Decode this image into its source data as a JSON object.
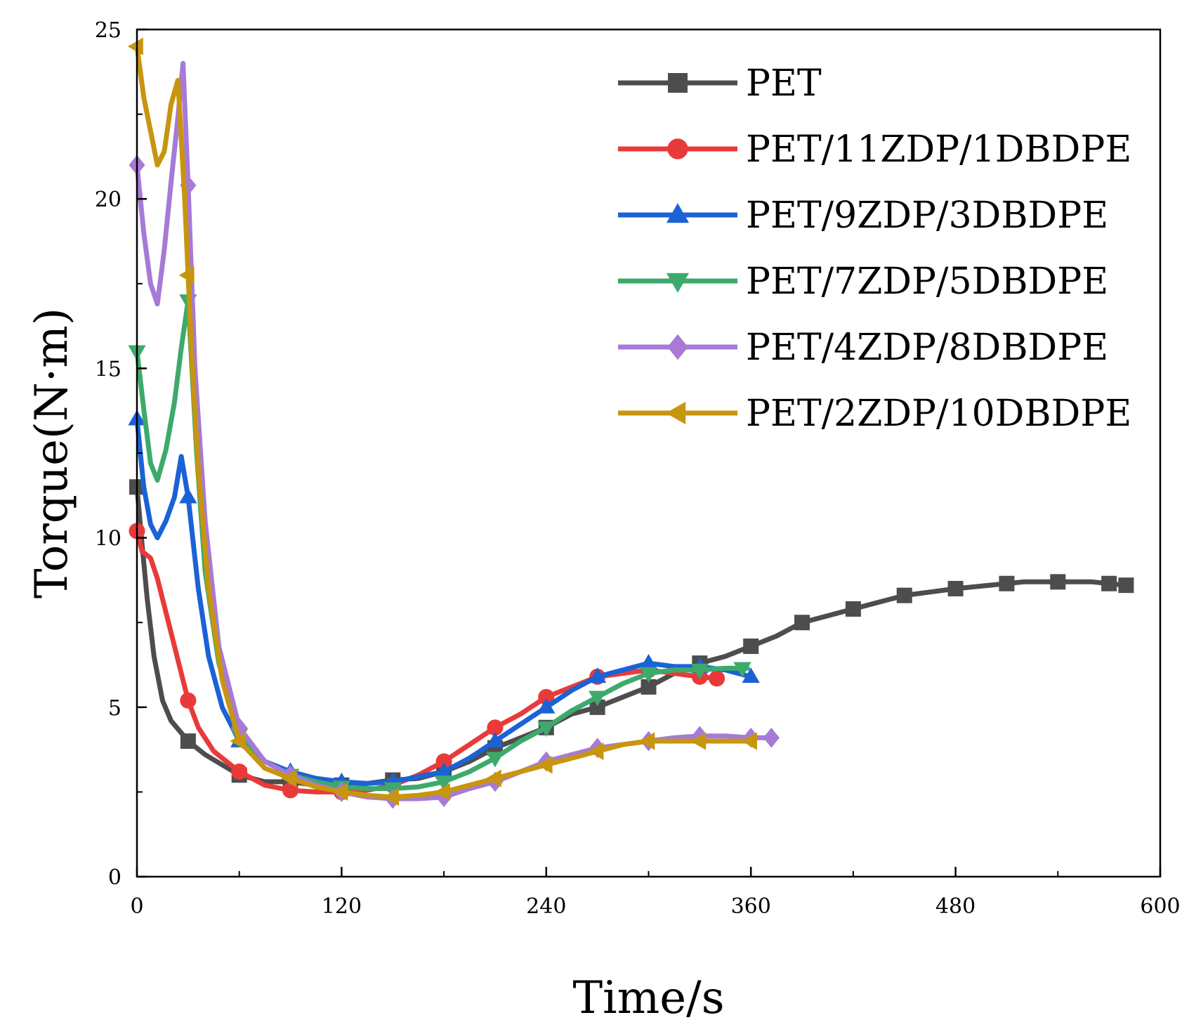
{
  "chart_data": {
    "type": "line",
    "title": "",
    "xlabel": "Time/s",
    "ylabel": "Torque(N·m)",
    "xlim": [
      0,
      600
    ],
    "ylim": [
      0,
      25
    ],
    "xticks": [
      0,
      120,
      240,
      360,
      480,
      600
    ],
    "yticks": [
      0,
      5,
      10,
      15,
      20,
      25
    ],
    "grid": false,
    "legend_position": "top-right",
    "series": [
      {
        "name": "PET",
        "color": "#4d4d4d",
        "marker": "square",
        "points": [
          [
            0,
            11.5
          ],
          [
            3,
            9.8
          ],
          [
            6,
            8.2
          ],
          [
            10,
            6.5
          ],
          [
            15,
            5.2
          ],
          [
            20,
            4.6
          ],
          [
            30,
            4.0
          ],
          [
            40,
            3.6
          ],
          [
            50,
            3.3
          ],
          [
            60,
            3.0
          ],
          [
            75,
            2.8
          ],
          [
            90,
            2.8
          ],
          [
            105,
            2.7
          ],
          [
            120,
            2.7
          ],
          [
            135,
            2.75
          ],
          [
            150,
            2.85
          ],
          [
            165,
            2.9
          ],
          [
            180,
            3.1
          ],
          [
            195,
            3.4
          ],
          [
            210,
            3.8
          ],
          [
            225,
            4.1
          ],
          [
            240,
            4.4
          ],
          [
            255,
            4.8
          ],
          [
            270,
            5.0
          ],
          [
            285,
            5.3
          ],
          [
            300,
            5.6
          ],
          [
            315,
            6.0
          ],
          [
            330,
            6.3
          ],
          [
            345,
            6.5
          ],
          [
            360,
            6.8
          ],
          [
            375,
            7.1
          ],
          [
            390,
            7.5
          ],
          [
            405,
            7.7
          ],
          [
            420,
            7.9
          ],
          [
            435,
            8.1
          ],
          [
            450,
            8.3
          ],
          [
            465,
            8.4
          ],
          [
            480,
            8.5
          ],
          [
            500,
            8.6
          ],
          [
            520,
            8.7
          ],
          [
            540,
            8.7
          ],
          [
            560,
            8.7
          ],
          [
            580,
            8.6
          ]
        ],
        "marker_x": [
          0,
          30,
          60,
          90,
          120,
          150,
          180,
          210,
          240,
          270,
          300,
          330,
          360,
          390,
          420,
          450,
          480,
          510,
          540,
          570,
          580
        ]
      },
      {
        "name": "PET/11ZDP/1DBDPE",
        "color": "#e93a3a",
        "marker": "circle",
        "points": [
          [
            0,
            10.2
          ],
          [
            3,
            9.6
          ],
          [
            8,
            9.4
          ],
          [
            12,
            8.8
          ],
          [
            18,
            7.6
          ],
          [
            24,
            6.4
          ],
          [
            30,
            5.2
          ],
          [
            36,
            4.4
          ],
          [
            45,
            3.7
          ],
          [
            60,
            3.1
          ],
          [
            75,
            2.7
          ],
          [
            90,
            2.55
          ],
          [
            105,
            2.5
          ],
          [
            120,
            2.5
          ],
          [
            135,
            2.55
          ],
          [
            150,
            2.7
          ],
          [
            165,
            3.0
          ],
          [
            180,
            3.4
          ],
          [
            195,
            3.9
          ],
          [
            210,
            4.4
          ],
          [
            225,
            4.8
          ],
          [
            240,
            5.3
          ],
          [
            255,
            5.6
          ],
          [
            270,
            5.9
          ],
          [
            285,
            6.0
          ],
          [
            300,
            6.1
          ],
          [
            315,
            6.0
          ],
          [
            330,
            5.9
          ],
          [
            340,
            5.85
          ]
        ],
        "marker_x": [
          0,
          30,
          60,
          90,
          120,
          150,
          180,
          210,
          240,
          270,
          300,
          330,
          340
        ]
      },
      {
        "name": "PET/9ZDP/3DBDPE",
        "color": "#1a62d6",
        "marker": "triangle-up",
        "points": [
          [
            0,
            13.5
          ],
          [
            4,
            11.5
          ],
          [
            8,
            10.4
          ],
          [
            12,
            10.0
          ],
          [
            17,
            10.5
          ],
          [
            22,
            11.2
          ],
          [
            26,
            12.4
          ],
          [
            30,
            11.2
          ],
          [
            36,
            8.5
          ],
          [
            42,
            6.5
          ],
          [
            50,
            5.0
          ],
          [
            60,
            4.0
          ],
          [
            75,
            3.4
          ],
          [
            90,
            3.1
          ],
          [
            105,
            2.9
          ],
          [
            120,
            2.8
          ],
          [
            135,
            2.75
          ],
          [
            150,
            2.8
          ],
          [
            165,
            2.95
          ],
          [
            180,
            3.1
          ],
          [
            195,
            3.5
          ],
          [
            210,
            4.0
          ],
          [
            225,
            4.5
          ],
          [
            240,
            5.0
          ],
          [
            255,
            5.5
          ],
          [
            270,
            5.9
          ],
          [
            285,
            6.1
          ],
          [
            300,
            6.3
          ],
          [
            315,
            6.2
          ],
          [
            330,
            6.2
          ],
          [
            345,
            6.1
          ],
          [
            360,
            5.9
          ]
        ],
        "marker_x": [
          0,
          30,
          60,
          90,
          120,
          150,
          180,
          210,
          240,
          270,
          300,
          330,
          360
        ]
      },
      {
        "name": "PET/7ZDP/5DBDPE",
        "color": "#3daa6b",
        "marker": "triangle-down",
        "points": [
          [
            0,
            15.5
          ],
          [
            4,
            13.8
          ],
          [
            8,
            12.2
          ],
          [
            12,
            11.7
          ],
          [
            17,
            12.6
          ],
          [
            22,
            14.0
          ],
          [
            26,
            15.6
          ],
          [
            30,
            17.0
          ],
          [
            35,
            12.5
          ],
          [
            40,
            9.0
          ],
          [
            48,
            6.3
          ],
          [
            60,
            4.2
          ],
          [
            75,
            3.4
          ],
          [
            90,
            3.0
          ],
          [
            105,
            2.8
          ],
          [
            120,
            2.65
          ],
          [
            135,
            2.6
          ],
          [
            150,
            2.6
          ],
          [
            165,
            2.65
          ],
          [
            180,
            2.8
          ],
          [
            195,
            3.1
          ],
          [
            210,
            3.5
          ],
          [
            225,
            4.0
          ],
          [
            240,
            4.4
          ],
          [
            255,
            4.9
          ],
          [
            270,
            5.3
          ],
          [
            285,
            5.7
          ],
          [
            300,
            6.0
          ],
          [
            315,
            6.1
          ],
          [
            330,
            6.1
          ],
          [
            345,
            6.15
          ],
          [
            358,
            6.15
          ]
        ],
        "marker_x": [
          0,
          30,
          60,
          90,
          120,
          150,
          180,
          210,
          240,
          270,
          300,
          330,
          355
        ]
      },
      {
        "name": "PET/4ZDP/8DBDPE",
        "color": "#a67ad6",
        "marker": "diamond",
        "points": [
          [
            0,
            21.0
          ],
          [
            4,
            19.0
          ],
          [
            8,
            17.5
          ],
          [
            12,
            16.9
          ],
          [
            16,
            18.5
          ],
          [
            20,
            20.5
          ],
          [
            24,
            22.4
          ],
          [
            27,
            24.0
          ],
          [
            30,
            20.4
          ],
          [
            34,
            15.0
          ],
          [
            40,
            10.5
          ],
          [
            48,
            6.8
          ],
          [
            60,
            4.4
          ],
          [
            75,
            3.4
          ],
          [
            90,
            3.0
          ],
          [
            105,
            2.7
          ],
          [
            120,
            2.5
          ],
          [
            135,
            2.35
          ],
          [
            150,
            2.3
          ],
          [
            165,
            2.3
          ],
          [
            180,
            2.35
          ],
          [
            195,
            2.6
          ],
          [
            210,
            2.8
          ],
          [
            225,
            3.1
          ],
          [
            240,
            3.4
          ],
          [
            255,
            3.6
          ],
          [
            270,
            3.8
          ],
          [
            285,
            3.9
          ],
          [
            300,
            4.0
          ],
          [
            315,
            4.1
          ],
          [
            330,
            4.15
          ],
          [
            345,
            4.15
          ],
          [
            360,
            4.1
          ],
          [
            372,
            4.1
          ]
        ],
        "marker_x": [
          0,
          30,
          60,
          90,
          120,
          150,
          180,
          210,
          240,
          270,
          300,
          330,
          360,
          372
        ]
      },
      {
        "name": "PET/2ZDP/10DBDPE",
        "color": "#c8950f",
        "marker": "triangle-left",
        "points": [
          [
            0,
            24.5
          ],
          [
            4,
            23.0
          ],
          [
            8,
            22.0
          ],
          [
            12,
            21.0
          ],
          [
            16,
            21.4
          ],
          [
            20,
            22.8
          ],
          [
            24,
            23.5
          ],
          [
            28,
            20.0
          ],
          [
            32,
            15.5
          ],
          [
            36,
            12.0
          ],
          [
            42,
            8.5
          ],
          [
            50,
            5.8
          ],
          [
            60,
            4.0
          ],
          [
            75,
            3.2
          ],
          [
            90,
            2.9
          ],
          [
            105,
            2.65
          ],
          [
            120,
            2.5
          ],
          [
            135,
            2.4
          ],
          [
            150,
            2.35
          ],
          [
            165,
            2.4
          ],
          [
            180,
            2.5
          ],
          [
            195,
            2.7
          ],
          [
            210,
            2.9
          ],
          [
            225,
            3.1
          ],
          [
            240,
            3.3
          ],
          [
            255,
            3.5
          ],
          [
            270,
            3.7
          ],
          [
            285,
            3.9
          ],
          [
            300,
            4.0
          ],
          [
            315,
            4.0
          ],
          [
            330,
            4.0
          ],
          [
            345,
            4.0
          ],
          [
            362,
            4.0
          ]
        ],
        "marker_x": [
          0,
          30,
          60,
          90,
          120,
          150,
          180,
          210,
          240,
          270,
          300,
          330,
          360
        ]
      }
    ]
  }
}
